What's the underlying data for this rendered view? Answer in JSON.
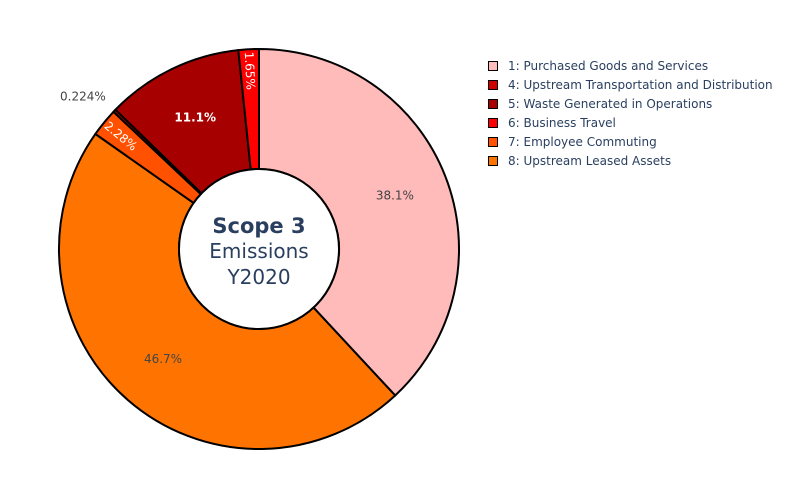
{
  "chart_data": {
    "type": "pie",
    "hole": 0.4,
    "center_title": {
      "bold": "Scope 3",
      "line2": "Emissions",
      "line3": "Y2020"
    },
    "slices": [
      {
        "label": "1: Purchased Goods and Services",
        "percent": 38.1,
        "percent_text": "38.1%",
        "color": "#ffbaba",
        "text_color": "#444444",
        "label_position": "inside"
      },
      {
        "label": "8: Upstream Leased Assets",
        "percent": 46.7,
        "percent_text": "46.7%",
        "color": "#ff7400",
        "text_color": "#444444",
        "label_position": "inside"
      },
      {
        "label": "7: Employee Commuting",
        "percent": 2.28,
        "percent_text": "2.28%",
        "color": "#ff5100",
        "text_color": "#ffffff",
        "label_position": "inside-radial"
      },
      {
        "label": "4: Upstream Transportation and Distribution",
        "percent": 0.224,
        "percent_text": "0.224%",
        "color": "#d00000",
        "text_color": "#444444",
        "label_position": "outside"
      },
      {
        "label": "5: Waste Generated in Operations",
        "percent": 11.1,
        "percent_text": "11.1%",
        "color": "#a70000",
        "text_color": "#ffffff",
        "label_position": "inside"
      },
      {
        "label": "6: Business Travel",
        "percent": 1.65,
        "percent_text": "1.65%",
        "color": "#ff0000",
        "text_color": "#ffffff",
        "label_position": "inside-radial"
      }
    ],
    "legend": [
      {
        "label": "1: Purchased Goods and Services",
        "color": "#ffbaba"
      },
      {
        "label": "4: Upstream Transportation and Distribution",
        "color": "#d00000"
      },
      {
        "label": "5: Waste Generated in Operations",
        "color": "#a70000"
      },
      {
        "label": "6: Business Travel",
        "color": "#ff0000"
      },
      {
        "label": "7: Employee Commuting",
        "color": "#ff5100"
      },
      {
        "label": "8: Upstream Leased Assets",
        "color": "#ff7400"
      }
    ],
    "legend_position": "top-right"
  }
}
